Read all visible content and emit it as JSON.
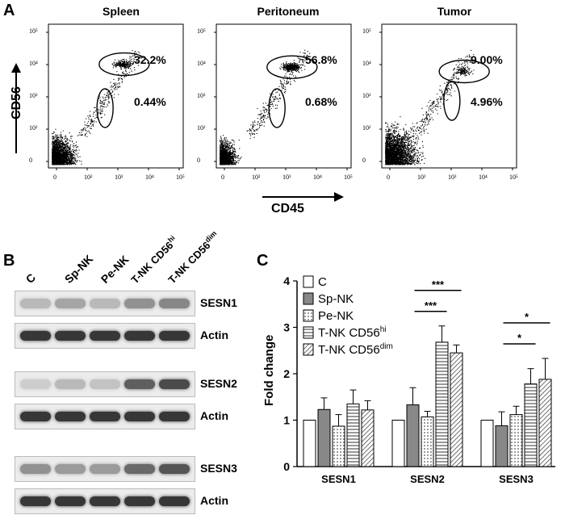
{
  "panel_a": {
    "letter": "A",
    "plots": [
      {
        "title": "Spleen",
        "upper_gate": "32.2%",
        "lower_gate": "0.44%"
      },
      {
        "title": "Peritoneum",
        "upper_gate": "56.8%",
        "lower_gate": "0.68%"
      },
      {
        "title": "Tumor",
        "upper_gate": "9.00%",
        "lower_gate": "4.96%"
      }
    ],
    "y_axis_label": "CD56",
    "x_axis_label": "CD45",
    "x_ticks": [
      "0",
      "10²",
      "10³",
      "10⁴",
      "10⁵"
    ],
    "y_ticks": [
      "10⁵",
      "10⁴",
      "10³",
      "10²",
      "0"
    ]
  },
  "panel_b": {
    "letter": "B",
    "lanes": [
      "C",
      "Sp-NK",
      "Pe-NK",
      "T-NK CD56hi",
      "T-NK CD56dim"
    ],
    "blots": [
      {
        "label": "SESN1",
        "intensities": [
          0.25,
          0.35,
          0.25,
          0.45,
          0.5
        ]
      },
      {
        "label": "Actin",
        "intensities": [
          0.9,
          0.9,
          0.9,
          0.9,
          0.9
        ]
      },
      {
        "label": "SESN2",
        "intensities": [
          0.15,
          0.25,
          0.2,
          0.7,
          0.8
        ]
      },
      {
        "label": "Actin",
        "intensities": [
          0.9,
          0.9,
          0.9,
          0.9,
          0.9
        ]
      },
      {
        "label": "SESN3",
        "intensities": [
          0.45,
          0.4,
          0.4,
          0.65,
          0.75
        ]
      },
      {
        "label": "Actin",
        "intensities": [
          0.9,
          0.9,
          0.9,
          0.9,
          0.9
        ]
      }
    ]
  },
  "panel_c": {
    "letter": "C"
  },
  "chart_data": {
    "type": "bar",
    "ylabel": "Fold change",
    "ylim": [
      0,
      4
    ],
    "yticks": [
      0,
      1,
      2,
      3,
      4
    ],
    "categories": [
      "SESN1",
      "SESN2",
      "SESN3"
    ],
    "series": [
      {
        "name": "C",
        "values": [
          1.0,
          1.0,
          1.0
        ],
        "errors": [
          0,
          0,
          0
        ],
        "pattern": "white"
      },
      {
        "name": "Sp-NK",
        "values": [
          1.23,
          1.33,
          0.88
        ],
        "errors": [
          0.25,
          0.37,
          0.3
        ],
        "pattern": "gray"
      },
      {
        "name": "Pe-NK",
        "values": [
          0.87,
          1.07,
          1.12
        ],
        "errors": [
          0.25,
          0.12,
          0.18
        ],
        "pattern": "dots"
      },
      {
        "name": "T-NK CD56hi",
        "values": [
          1.35,
          2.68,
          1.78
        ],
        "errors": [
          0.3,
          0.35,
          0.33
        ],
        "pattern": "hlines"
      },
      {
        "name": "T-NK CD56dim",
        "values": [
          1.22,
          2.45,
          1.88
        ],
        "errors": [
          0.2,
          0.17,
          0.45
        ],
        "pattern": "diag"
      }
    ],
    "significance": [
      {
        "category": "SESN2",
        "label": "***"
      },
      {
        "category": "SESN2",
        "label": "***"
      },
      {
        "category": "SESN3",
        "label": "*"
      },
      {
        "category": "SESN3",
        "label": "*"
      }
    ],
    "legend_position": "top-left"
  }
}
